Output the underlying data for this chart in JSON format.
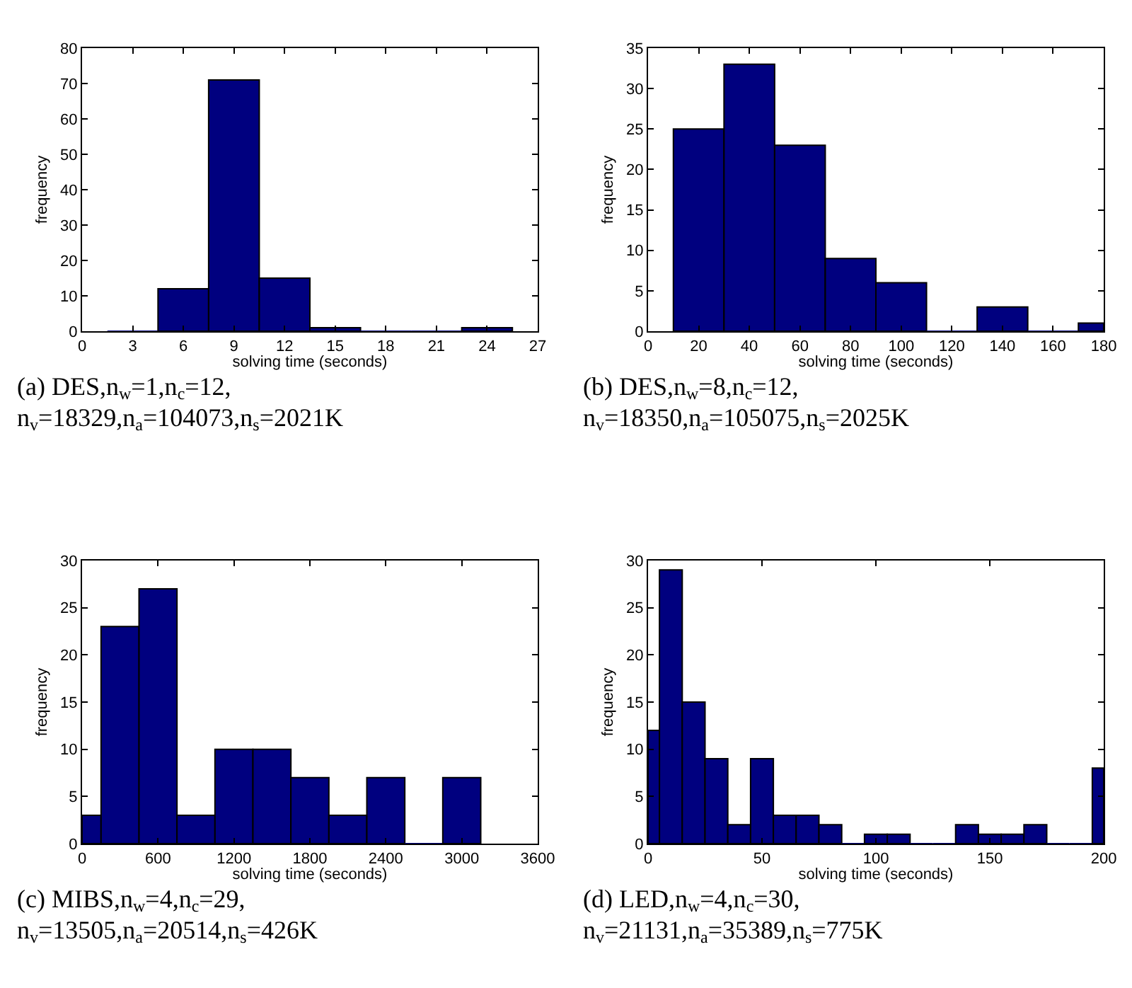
{
  "chart_data": [
    {
      "type": "histogram",
      "xlabel": "solving time (seconds)",
      "ylabel": "frequency",
      "color": "#00007f",
      "bins": [
        1.5,
        4.5,
        7.5,
        10.5,
        13.5,
        16.5,
        19.5,
        22.5,
        25.5
      ],
      "values": [
        0,
        12,
        71,
        15,
        1,
        0,
        0,
        1
      ],
      "xlim": [
        0,
        27
      ],
      "xticks": [
        0,
        3,
        6,
        9,
        12,
        15,
        18,
        21,
        24,
        27
      ],
      "ylim": [
        0,
        80
      ],
      "yticks": [
        0,
        10,
        20,
        30,
        40,
        50,
        60,
        70,
        80
      ],
      "annotations": [
        "(a) DES,n$_{w}$=1,n$_{c}$=12,",
        "n$_{v}$=18329,n$_{a}$=104073,n$_{s}$=2021K"
      ]
    },
    {
      "type": "histogram",
      "xlabel": "solving time (seconds)",
      "ylabel": "frequency",
      "color": "#00007f",
      "bins": [
        10,
        30,
        50,
        70,
        90,
        110,
        130,
        150,
        170,
        180
      ],
      "values": [
        25,
        33,
        23,
        9,
        6,
        0,
        3,
        0,
        1
      ],
      "xlim": [
        0,
        180
      ],
      "xticks": [
        0,
        20,
        40,
        60,
        80,
        100,
        120,
        140,
        160,
        180
      ],
      "ylim": [
        0,
        35
      ],
      "yticks": [
        0,
        5,
        10,
        15,
        20,
        25,
        30,
        35
      ],
      "annotations": [
        "(b) DES,n$_{w}$=8,n$_{c}$=12,",
        "n$_{v}$=18350,n$_{a}$=105075,n$_{s}$=2025K"
      ]
    },
    {
      "type": "histogram",
      "xlabel": "solving time (seconds)",
      "ylabel": "frequency",
      "color": "#00007f",
      "bins": [
        0,
        150,
        450,
        750,
        1050,
        1350,
        1650,
        1950,
        2250,
        2550,
        2850,
        3150
      ],
      "values": [
        3,
        23,
        27,
        3,
        10,
        10,
        7,
        3,
        7,
        0,
        7
      ],
      "xlim": [
        0,
        3600
      ],
      "xticks": [
        0,
        600,
        1200,
        1800,
        2400,
        3000,
        3600
      ],
      "ylim": [
        0,
        30
      ],
      "yticks": [
        0,
        5,
        10,
        15,
        20,
        25,
        30
      ],
      "annotations": [
        "(c) MIBS,n$_{w}$=4,n$_{c}$=29,",
        "n$_{v}$=13505,n$_{a}$=20514,n$_{s}$=426K"
      ]
    },
    {
      "type": "histogram",
      "xlabel": "solving time (seconds)",
      "ylabel": "frequency",
      "color": "#00007f",
      "bins": [
        0,
        5,
        15,
        25,
        35,
        45,
        55,
        65,
        75,
        85,
        95,
        105,
        115,
        125,
        135,
        145,
        155,
        165,
        175,
        185,
        195,
        200
      ],
      "values": [
        12,
        29,
        15,
        9,
        2,
        9,
        3,
        3,
        2,
        0,
        1,
        1,
        0,
        0,
        2,
        1,
        1,
        2,
        0,
        0,
        8
      ],
      "xlim": [
        0,
        200
      ],
      "xticks": [
        0,
        50,
        100,
        150,
        200
      ],
      "ylim": [
        0,
        30
      ],
      "yticks": [
        0,
        5,
        10,
        15,
        20,
        25,
        30
      ],
      "annotations": [
        "(d) LED,n$_{w}$=4,n$_{c}$=30,",
        "n$_{v}$=21131,n$_{a}$=35389,n$_{s}$=775K"
      ]
    }
  ]
}
